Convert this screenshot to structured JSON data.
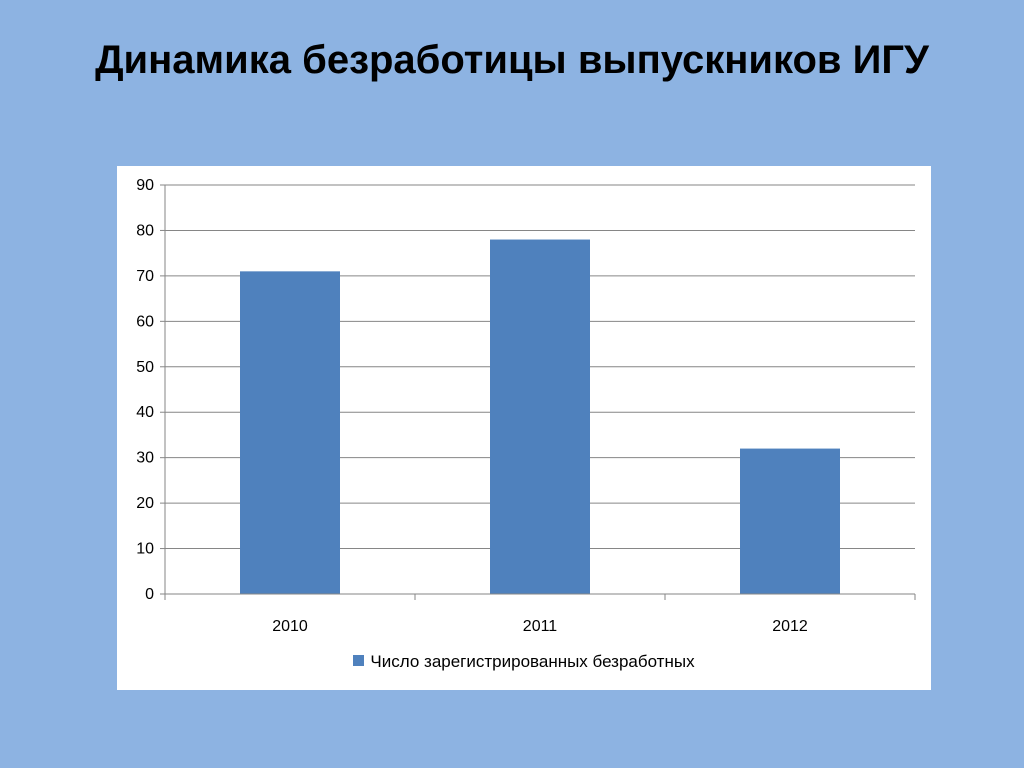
{
  "slide": {
    "title": "Динамика безработицы выпускников ИГУ"
  },
  "colors": {
    "background": "#8db3e2",
    "bar": "#4f81bd",
    "grid": "#868686"
  },
  "chart_data": {
    "type": "bar",
    "title": "",
    "xlabel": "",
    "ylabel": "",
    "categories": [
      "2010",
      "2011",
      "2012"
    ],
    "series": [
      {
        "name": "Число зарегистрированных безработных",
        "values": [
          71,
          78,
          32
        ]
      }
    ],
    "ylim": [
      0,
      90
    ],
    "yticks": [
      0,
      10,
      20,
      30,
      40,
      50,
      60,
      70,
      80,
      90
    ],
    "grid": true,
    "legend": "bottom"
  }
}
